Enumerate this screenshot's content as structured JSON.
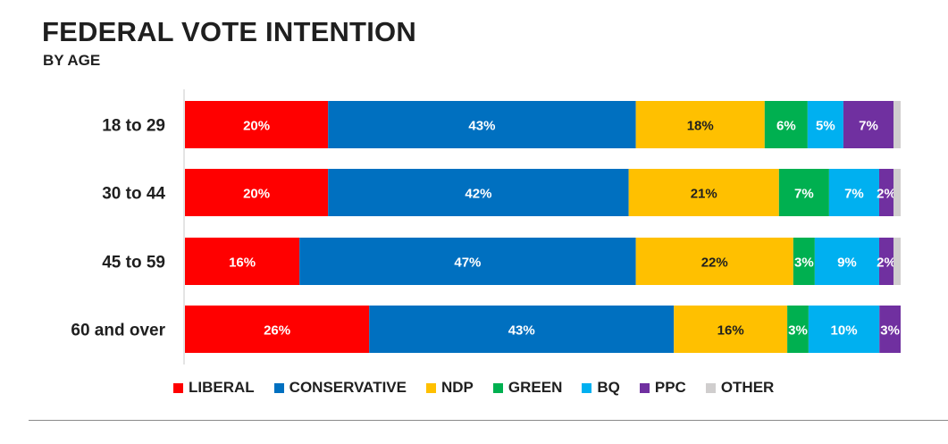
{
  "header": {
    "title": "FEDERAL VOTE INTENTION",
    "subtitle": "BY AGE"
  },
  "chart_data": {
    "type": "bar",
    "orientation": "horizontal",
    "stacked": true,
    "title": "FEDERAL VOTE INTENTION",
    "subtitle": "BY AGE",
    "categories": [
      "18 to 29",
      "30 to 44",
      "45 to 59",
      "60 and over"
    ],
    "series": [
      {
        "name": "LIBERAL",
        "color": "#ff0000",
        "values": [
          20,
          20,
          16,
          26
        ],
        "labels": [
          "20%",
          "20%",
          "16%",
          "26%"
        ]
      },
      {
        "name": "CONSERVATIVE",
        "color": "#0070c0",
        "values": [
          43,
          42,
          47,
          43
        ],
        "labels": [
          "43%",
          "42%",
          "47%",
          "43%"
        ]
      },
      {
        "name": "NDP",
        "color": "#ffc000",
        "values": [
          18,
          21,
          22,
          16
        ],
        "labels": [
          "18%",
          "21%",
          "22%",
          "16%"
        ]
      },
      {
        "name": "GREEN",
        "color": "#00b050",
        "values": [
          6,
          7,
          3,
          3
        ],
        "labels": [
          "6%",
          "7%",
          "3%",
          "3%"
        ]
      },
      {
        "name": "BQ",
        "color": "#00b0f0",
        "values": [
          5,
          7,
          9,
          10
        ],
        "labels": [
          "5%",
          "7%",
          "9%",
          "10%"
        ]
      },
      {
        "name": "PPC",
        "color": "#7030a0",
        "values": [
          7,
          2,
          2,
          3
        ],
        "labels": [
          "7%",
          "2%",
          "2%",
          "3%"
        ]
      },
      {
        "name": "OTHER",
        "color": "#d0cece",
        "values": [
          1,
          1,
          1,
          0
        ],
        "labels": [
          "",
          "",
          "",
          ""
        ]
      }
    ],
    "xlim": [
      0,
      100
    ],
    "grid": false,
    "legend_position": "bottom"
  }
}
